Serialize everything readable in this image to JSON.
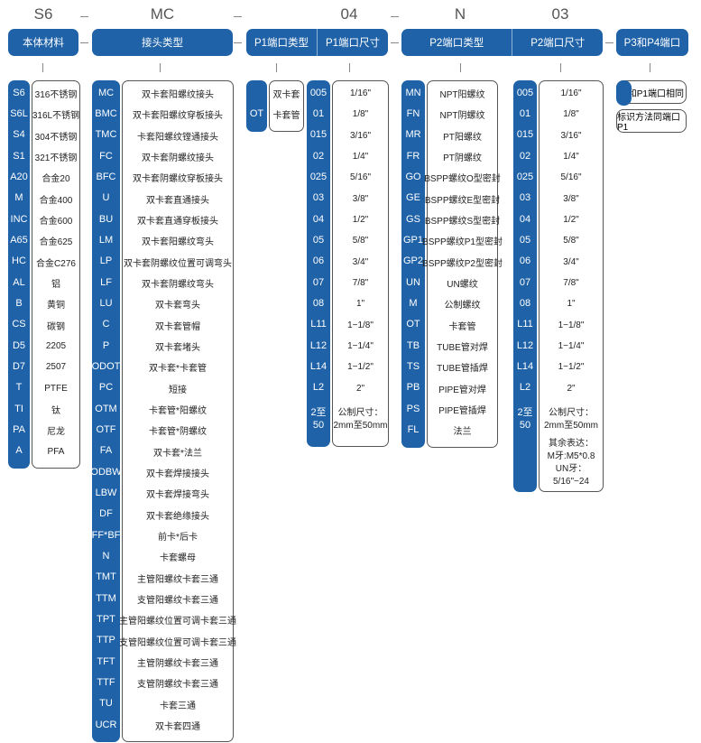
{
  "code_example": {
    "material": "S6",
    "fitting": "MC",
    "p1_size": "04",
    "p2_type": "N",
    "p2_size": "03"
  },
  "headers": {
    "material": "本体材料",
    "fitting": "接头类型",
    "p1_type": "P1端口类型",
    "p1_size": "P1端口尺寸",
    "p2_type": "P2端口类型",
    "p2_size": "P2端口尺寸",
    "p3p4": "P3和P4端口"
  },
  "accent_color": "#1f62a8",
  "material": [
    [
      "S6",
      "316不锈钢"
    ],
    [
      "S6L",
      "316L不锈钢"
    ],
    [
      "S4",
      "304不锈钢"
    ],
    [
      "S1",
      "321不锈钢"
    ],
    [
      "A20",
      "合金20"
    ],
    [
      "M",
      "合金400"
    ],
    [
      "INC",
      "合金600"
    ],
    [
      "A65",
      "合金625"
    ],
    [
      "HC",
      "合金C276"
    ],
    [
      "AL",
      "铝"
    ],
    [
      "B",
      "黄铜"
    ],
    [
      "CS",
      "碳钢"
    ],
    [
      "D5",
      "2205"
    ],
    [
      "D7",
      "2507"
    ],
    [
      "T",
      "PTFE"
    ],
    [
      "TI",
      "钛"
    ],
    [
      "PA",
      "尼龙"
    ],
    [
      "A",
      "PFA"
    ]
  ],
  "fitting": [
    [
      "MC",
      "双卡套阳螺纹接头"
    ],
    [
      "BMC",
      "双卡套阳螺纹穿板接头"
    ],
    [
      "TMC",
      "卡套阳螺纹镗通接头"
    ],
    [
      "FC",
      "双卡套阴螺纹接头"
    ],
    [
      "BFC",
      "双卡套阴螺纹穿板接头"
    ],
    [
      "U",
      "双卡套直通接头"
    ],
    [
      "BU",
      "双卡套直通穿板接头"
    ],
    [
      "LM",
      "双卡套阳螺纹弯头"
    ],
    [
      "LP",
      "双卡套阴螺纹位置可调弯头"
    ],
    [
      "LF",
      "双卡套阴螺纹弯头"
    ],
    [
      "LU",
      "双卡套弯头"
    ],
    [
      "C",
      "双卡套管帽"
    ],
    [
      "P",
      "双卡套堵头"
    ],
    [
      "ODOT",
      "双卡套*卡套管"
    ],
    [
      "PC",
      "短接"
    ],
    [
      "OTM",
      "卡套管*阳螺纹"
    ],
    [
      "OTF",
      "卡套管*阴螺纹"
    ],
    [
      "FA",
      "双卡套*法兰"
    ],
    [
      "ODBW",
      "双卡套焊接接头"
    ],
    [
      "LBW",
      "双卡套焊接弯头"
    ],
    [
      "DF",
      "双卡套绝缘接头"
    ],
    [
      "FF*BF",
      "前卡*后卡"
    ],
    [
      "N",
      "卡套螺母"
    ],
    [
      "TMT",
      "主管阳螺纹卡套三通"
    ],
    [
      "TTM",
      "支管阳螺纹卡套三通"
    ],
    [
      "TPT",
      "主管阳螺纹位置可调卡套三通"
    ],
    [
      "TTP",
      "支管阳螺纹位置可调卡套三通"
    ],
    [
      "TFT",
      "主管阴螺纹卡套三通"
    ],
    [
      "TTF",
      "支管阴螺纹卡套三通"
    ],
    [
      "TU",
      "卡套三通"
    ],
    [
      "UCR",
      "双卡套四通"
    ]
  ],
  "p1_type": [
    [
      "",
      "双卡套"
    ],
    [
      "OT",
      "卡套管"
    ]
  ],
  "p1_size": [
    [
      "005",
      "1/16\""
    ],
    [
      "01",
      "1/8\""
    ],
    [
      "015",
      "3/16\""
    ],
    [
      "02",
      "1/4\""
    ],
    [
      "025",
      "5/16\""
    ],
    [
      "03",
      "3/8\""
    ],
    [
      "04",
      "1/2\""
    ],
    [
      "05",
      "5/8\""
    ],
    [
      "06",
      "3/4\""
    ],
    [
      "07",
      "7/8\""
    ],
    [
      "08",
      "1\""
    ],
    [
      "L11",
      "1−1/8\""
    ],
    [
      "L12",
      "1−1/4\""
    ],
    [
      "L14",
      "1−1/2\""
    ],
    [
      "L2",
      "2\""
    ],
    [
      "2至50",
      "公制尺寸：\n2mm至50mm"
    ]
  ],
  "p2_type": [
    [
      "MN",
      "NPT阳螺纹"
    ],
    [
      "FN",
      "NPT阴螺纹"
    ],
    [
      "MR",
      "PT阳螺纹"
    ],
    [
      "FR",
      "PT阴螺纹"
    ],
    [
      "GO",
      "BSPP螺纹O型密封"
    ],
    [
      "GE",
      "BSPP螺纹E型密封"
    ],
    [
      "GS",
      "BSPP螺纹S型密封"
    ],
    [
      "GP1",
      "BSPP螺纹P1型密封"
    ],
    [
      "GP2",
      "BSPP螺纹P2型密封"
    ],
    [
      "UN",
      "UN螺纹"
    ],
    [
      "M",
      "公制螺纹"
    ],
    [
      "OT",
      "卡套管"
    ],
    [
      "TB",
      "TUBE管对焊"
    ],
    [
      "TS",
      "TUBE管插焊"
    ],
    [
      "PB",
      "PIPE管对焊"
    ],
    [
      "PS",
      "PIPE管插焊"
    ],
    [
      "FL",
      "法兰"
    ]
  ],
  "p2_size": [
    [
      "005",
      "1/16\""
    ],
    [
      "01",
      "1/8\""
    ],
    [
      "015",
      "3/16\""
    ],
    [
      "02",
      "1/4\""
    ],
    [
      "025",
      "5/16\""
    ],
    [
      "03",
      "3/8\""
    ],
    [
      "04",
      "1/2\""
    ],
    [
      "05",
      "5/8\""
    ],
    [
      "06",
      "3/4\""
    ],
    [
      "07",
      "7/8\""
    ],
    [
      "08",
      "1\""
    ],
    [
      "L11",
      "1−1/8\""
    ],
    [
      "L12",
      "1−1/4\""
    ],
    [
      "L14",
      "1−1/2\""
    ],
    [
      "L2",
      "2\""
    ],
    [
      "2至50",
      "公制尺寸：\n2mm至50mm"
    ],
    [
      "",
      "其余表达：\nM牙:M5*0.8\nUN牙：5/16\"−24"
    ]
  ],
  "p3p4": {
    "same_as_p1": "和P1端口相同",
    "marking": "标识方法同端口P1"
  }
}
